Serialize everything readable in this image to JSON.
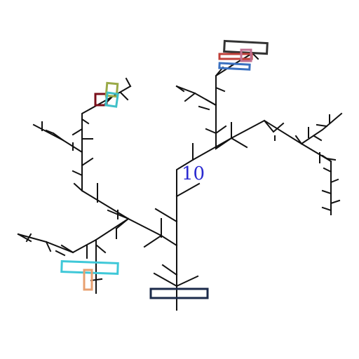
{
  "label": {
    "text": "10",
    "color": "#2a2ad0"
  },
  "colors": {
    "line": "#111111",
    "navy": "#1b2a4a",
    "cyan": "#3fc8d8",
    "orange": "#e8a070",
    "maroon": "#7a0f1a",
    "olive": "#9aaa48",
    "teal": "#40c0c8",
    "charcoal": "#333333",
    "red": "#c0403a",
    "pink": "#c07090",
    "blue": "#3a70c0"
  }
}
